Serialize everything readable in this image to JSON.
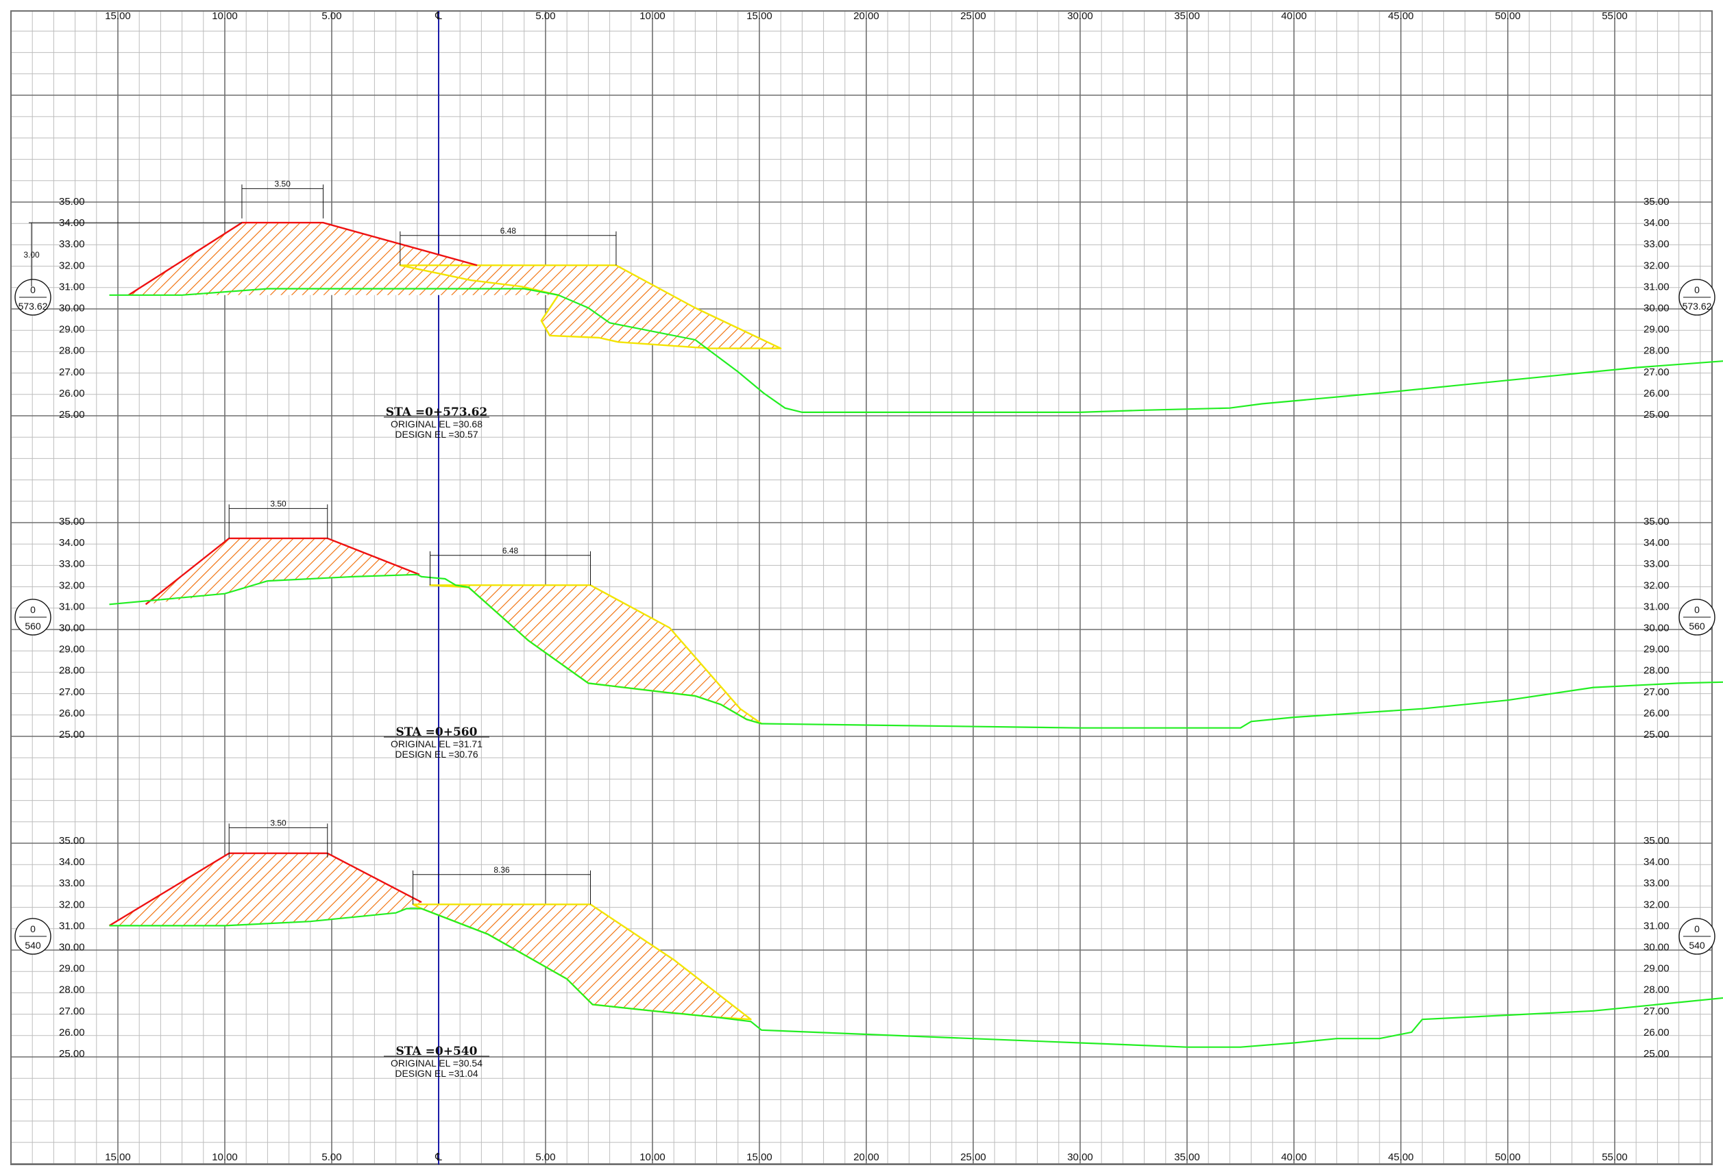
{
  "drawing": {
    "centerline_symbol": "℄",
    "offset_labels": [
      "15.00",
      "10.00",
      "5.00",
      "℄",
      "5.00",
      "10.00",
      "15.00",
      "20.00",
      "25.00",
      "30.00",
      "35.00",
      "40.00",
      "45.00",
      "50.00",
      "55.00"
    ],
    "colors": {
      "grid_minor": "#bdbdbd",
      "grid_major": "#6f6f6f",
      "centerline": "#1a1aa8",
      "ground": "#22ee22",
      "embankment": "#ee1111",
      "cut_outline": "#f3e400",
      "hatch": "#f06a00"
    }
  },
  "sections": [
    {
      "marker_top": "0",
      "marker_bottom": "573.62",
      "station_label": "STA =0+573.62",
      "original_el": "ORIGINAL  EL  =30.68",
      "design_el": "DESIGN  EL  =30.57",
      "crest_width": "3.50",
      "cut_width": "6.48",
      "height_dim": "3.00",
      "elevations": [
        "35.00",
        "34.00",
        "33.00",
        "32.00",
        "31.00",
        "30.00",
        "29.00",
        "28.00",
        "27.00",
        "26.00",
        "25.00"
      ]
    },
    {
      "marker_top": "0",
      "marker_bottom": "560",
      "station_label": "STA =0+560",
      "original_el": "ORIGINAL  EL  =31.71",
      "design_el": "DESIGN  EL  =30.76",
      "crest_width": "3.50",
      "cut_width": "6.48",
      "height_dim": "",
      "elevations": [
        "35.00",
        "34.00",
        "33.00",
        "32.00",
        "31.00",
        "30.00",
        "29.00",
        "28.00",
        "27.00",
        "26.00",
        "25.00"
      ]
    },
    {
      "marker_top": "0",
      "marker_bottom": "540",
      "station_label": "STA =0+540",
      "original_el": "ORIGINAL  EL  =30.54",
      "design_el": "DESIGN  EL  =31.04",
      "crest_width": "3.50",
      "cut_width": "8.36",
      "height_dim": "",
      "elevations": [
        "35.00",
        "34.00",
        "33.00",
        "32.00",
        "31.00",
        "30.00",
        "29.00",
        "28.00",
        "27.00",
        "26.00",
        "25.00"
      ]
    }
  ]
}
